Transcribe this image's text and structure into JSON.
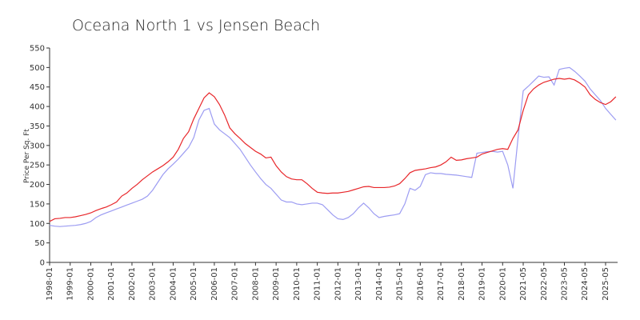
{
  "chart_data": {
    "type": "line",
    "title": "Oceana North 1 vs Jensen Beach",
    "y_label": "Price Per Sq. Ft",
    "categories": [
      "1998-01",
      null,
      null,
      null,
      "1999-01",
      null,
      null,
      null,
      "2000-01",
      null,
      null,
      null,
      "2001-01",
      null,
      null,
      null,
      "2002-01",
      null,
      null,
      null,
      "2003-01",
      null,
      null,
      null,
      "2004-01",
      null,
      null,
      null,
      "2005-01",
      null,
      null,
      null,
      "2006-01",
      null,
      null,
      null,
      "2007-01",
      null,
      null,
      null,
      "2008-01",
      null,
      null,
      null,
      "2009-01",
      null,
      null,
      null,
      "2010-01",
      null,
      null,
      null,
      "2011-01",
      null,
      null,
      null,
      "2012-01",
      null,
      null,
      null,
      "2013-01",
      null,
      null,
      null,
      "2014-01",
      null,
      null,
      null,
      "2015-01",
      null,
      null,
      null,
      "2016-01",
      null,
      null,
      null,
      "2017-01",
      null,
      null,
      null,
      "2018-01",
      null,
      null,
      null,
      "2019-01",
      null,
      null,
      null,
      "2020-01",
      null,
      null,
      null,
      "2021-05",
      null,
      null,
      null,
      "2022-05",
      null,
      null,
      null,
      "2023-05",
      null,
      null,
      null,
      "2024-05",
      null,
      null,
      null,
      "2025-05",
      null,
      null
    ],
    "series": [
      {
        "color": "#e8262a",
        "values": [
          105,
          112,
          113,
          115,
          115,
          117,
          120,
          123,
          127,
          133,
          138,
          142,
          148,
          155,
          170,
          178,
          190,
          200,
          212,
          222,
          232,
          240,
          248,
          258,
          270,
          290,
          318,
          335,
          368,
          395,
          422,
          435,
          425,
          405,
          378,
          345,
          330,
          318,
          305,
          295,
          285,
          278,
          268,
          270,
          248,
          232,
          220,
          214,
          212,
          212,
          202,
          190,
          180,
          178,
          177,
          178,
          178,
          180,
          182,
          186,
          190,
          194,
          195,
          192,
          192,
          192,
          193,
          196,
          202,
          215,
          230,
          236,
          238,
          240,
          243,
          245,
          250,
          258,
          270,
          262,
          263,
          266,
          268,
          270,
          278,
          282,
          286,
          290,
          292,
          290,
          318,
          340,
          390,
          430,
          445,
          455,
          462,
          466,
          470,
          472,
          470,
          472,
          468,
          460,
          450,
          430,
          418,
          410,
          405,
          412,
          425
        ]
      },
      {
        "color": "#9c9cf2",
        "values": [
          95,
          93,
          92,
          93,
          94,
          95,
          97,
          100,
          105,
          115,
          122,
          127,
          132,
          137,
          142,
          147,
          152,
          157,
          162,
          170,
          185,
          205,
          225,
          240,
          252,
          265,
          280,
          295,
          320,
          365,
          390,
          395,
          355,
          340,
          330,
          320,
          305,
          290,
          270,
          250,
          232,
          215,
          200,
          190,
          175,
          160,
          155,
          155,
          150,
          148,
          150,
          152,
          152,
          148,
          135,
          122,
          112,
          110,
          115,
          125,
          140,
          152,
          140,
          125,
          115,
          118,
          120,
          122,
          125,
          150,
          190,
          185,
          195,
          225,
          230,
          228,
          228,
          226,
          225,
          224,
          222,
          220,
          218,
          280,
          282,
          284,
          285,
          283,
          285,
          250,
          190,
          320,
          440,
          452,
          465,
          478,
          475,
          476,
          455,
          495,
          498,
          500,
          490,
          478,
          465,
          445,
          430,
          415,
          395,
          380,
          365
        ]
      }
    ],
    "ylim": [
      0,
      550
    ],
    "yticks": [
      0,
      50,
      100,
      150,
      200,
      250,
      300,
      350,
      400,
      450,
      500,
      550
    ]
  }
}
